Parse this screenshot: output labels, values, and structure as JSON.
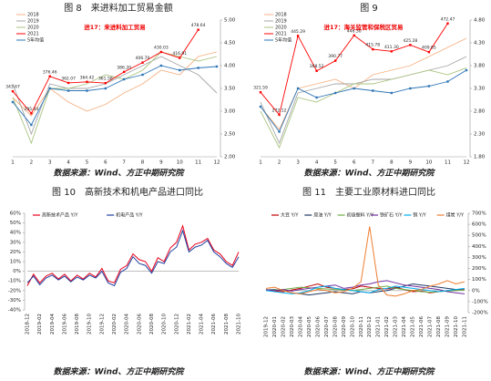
{
  "chart_data": [
    {
      "type": "line",
      "title": "图 8　来进料加工贸易金额",
      "annotation": "进17：来进料加工贸易",
      "categories": [
        "1",
        "2",
        "3",
        "4",
        "5",
        "6",
        "7",
        "8",
        "9",
        "10",
        "11",
        "12"
      ],
      "ylim": [
        200,
        500
      ],
      "yticks": [
        {
          "value": 200,
          "label": "2.00"
        },
        {
          "value": 250,
          "label": "2.50"
        },
        {
          "value": 300,
          "label": "3.00"
        },
        {
          "value": 350,
          "label": "3.50"
        },
        {
          "value": 400,
          "label": "4.00"
        },
        {
          "value": 450,
          "label": "4.50"
        },
        {
          "value": 500,
          "label": "5.00"
        }
      ],
      "series": [
        {
          "name": "2018",
          "color": "#f4b183",
          "values": [
            330,
            290,
            350,
            320,
            300,
            315,
            340,
            360,
            390,
            380,
            420,
            430
          ]
        },
        {
          "name": "2019",
          "color": "#a5a5a5",
          "values": [
            360,
            250,
            360,
            350,
            350,
            360,
            380,
            400,
            420,
            400,
            380,
            340
          ]
        },
        {
          "name": "2020",
          "color": "#a9c47f",
          "values": [
            330,
            230,
            350,
            350,
            360,
            380,
            370,
            390,
            430,
            420,
            410,
            420
          ]
        },
        {
          "name": "2021",
          "color": "#ff0000",
          "markers": true,
          "values": [
            343.67,
            295.44,
            376.46,
            362.07,
            364.42,
            361.58,
            386.2,
            406.7,
            430.03,
            416.91,
            478.64,
            null
          ],
          "value_labels": [
            "343.67",
            "295.44",
            "376.46",
            "362.07",
            "364.42",
            "361.58",
            "386.20",
            "406.70",
            "430.03",
            "416.91",
            "478.64",
            null
          ]
        },
        {
          "name": "5年均值",
          "color": "#2e75b6",
          "markers": true,
          "values": [
            320,
            270,
            350,
            345,
            345,
            350,
            370,
            380,
            400,
            390,
            395,
            398
          ]
        }
      ]
    },
    {
      "type": "line",
      "title": "图 9",
      "annotation": "进17：海关监管和保税区贸易",
      "categories": [
        "1",
        "2",
        "3",
        "4",
        "5",
        "6",
        "7",
        "8",
        "9",
        "10",
        "11",
        "12"
      ],
      "ylim": [
        180,
        480
      ],
      "yticks": [
        {
          "value": 180,
          "label": "1.80"
        },
        {
          "value": 230,
          "label": "2.30"
        },
        {
          "value": 280,
          "label": "2.80"
        },
        {
          "value": 330,
          "label": "3.30"
        },
        {
          "value": 380,
          "label": "3.80"
        },
        {
          "value": 430,
          "label": "4.30"
        },
        {
          "value": 480,
          "label": "4.80"
        }
      ],
      "series": [
        {
          "name": "2018",
          "color": "#f4b183",
          "values": [
            290,
            240,
            330,
            340,
            350,
            330,
            360,
            370,
            380,
            400,
            420,
            440
          ]
        },
        {
          "name": "2019",
          "color": "#a5a5a5",
          "values": [
            300,
            210,
            320,
            330,
            340,
            340,
            350,
            350,
            360,
            370,
            380,
            400
          ]
        },
        {
          "name": "2020",
          "color": "#a9c47f",
          "values": [
            280,
            200,
            310,
            300,
            320,
            340,
            340,
            350,
            360,
            370,
            360,
            375
          ]
        },
        {
          "name": "2021",
          "color": "#ff0000",
          "markers": true,
          "values": [
            321.59,
            272.12,
            445.29,
            368.52,
            390.77,
            446.3,
            415.78,
            411.3,
            425.28,
            409.65,
            472.47,
            null
          ],
          "value_labels": [
            "321.59",
            "272.12",
            "445.29",
            "368.52",
            "390.77",
            "446.30",
            "415.78",
            "411.30",
            "425.28",
            "409.65",
            "472.47",
            null
          ]
        },
        {
          "name": "5年均值",
          "color": "#2e75b6",
          "markers": true,
          "values": [
            290,
            235,
            330,
            310,
            320,
            330,
            325,
            320,
            330,
            335,
            345,
            370
          ]
        }
      ]
    },
    {
      "type": "line",
      "title": "图 10　高新技术和机电产品进口同比",
      "categories": [
        "2018-12",
        null,
        "2019-02",
        null,
        "2019-04",
        null,
        "2019-06",
        null,
        "2019-08",
        null,
        "2019-10",
        null,
        "2019-12",
        null,
        "2020-02",
        null,
        "2020-04",
        null,
        "2020-06",
        null,
        "2020-08",
        null,
        "2020-10",
        null,
        "2020-12",
        null,
        "2021-02",
        null,
        "2021-04",
        null,
        "2021-06",
        null,
        "2021-08",
        null,
        "2021-10"
      ],
      "ylim": [
        -40,
        60
      ],
      "yticks": [
        {
          "value": -40,
          "label": "-40%"
        },
        {
          "value": -30,
          "label": "-30%"
        },
        {
          "value": -20,
          "label": "-20%"
        },
        {
          "value": -10,
          "label": "-10%"
        },
        {
          "value": 0,
          "label": "0%"
        },
        {
          "value": 10,
          "label": "10%"
        },
        {
          "value": 20,
          "label": "20%"
        },
        {
          "value": 30,
          "label": "30%"
        },
        {
          "value": 40,
          "label": "40%"
        },
        {
          "value": 50,
          "label": "50%"
        },
        {
          "value": 60,
          "label": "60%"
        }
      ],
      "series": [
        {
          "name": "高新技术产品 Y/Y",
          "color": "#e8001c",
          "values": [
            -15,
            -3,
            -12,
            -5,
            -2,
            -8,
            -3,
            -10,
            -4,
            -8,
            -2,
            -6,
            3,
            -10,
            -12,
            2,
            6,
            18,
            12,
            10,
            0,
            14,
            10,
            24,
            30,
            47,
            22,
            28,
            30,
            34,
            22,
            18,
            10,
            6,
            20
          ]
        },
        {
          "name": "机电产品 Y/Y",
          "color": "#1f3fa0",
          "values": [
            -12,
            -5,
            -14,
            -7,
            -4,
            -9,
            -5,
            -11,
            -6,
            -9,
            -4,
            -7,
            0,
            -12,
            -15,
            -1,
            3,
            15,
            8,
            6,
            -2,
            10,
            8,
            20,
            25,
            42,
            20,
            25,
            27,
            32,
            20,
            15,
            8,
            4,
            15
          ]
        }
      ]
    },
    {
      "type": "line",
      "title": "图 11　主要工业原材料进口同比",
      "categories": [
        "2019-12",
        "2020-01",
        "2020-02",
        "2020-03",
        "2020-04",
        "2020-05",
        "2020-06",
        "2020-07",
        "2020-08",
        "2020-09",
        "2020-10",
        "2020-11",
        "2020-12",
        "2021-01",
        "2021-02",
        "2021-03",
        "2021-04",
        "2021-05",
        "2021-06",
        "2021-07",
        "2021-08",
        "2021-09",
        "2021-10",
        "2021-11"
      ],
      "ylim": [
        -200,
        700
      ],
      "yticks": [
        {
          "value": -200,
          "label": "-200%"
        },
        {
          "value": -100,
          "label": "-100%"
        },
        {
          "value": 0,
          "label": "0%"
        },
        {
          "value": 100,
          "label": "100%"
        },
        {
          "value": 200,
          "label": "200%"
        },
        {
          "value": 300,
          "label": "300%"
        },
        {
          "value": 400,
          "label": "400%"
        },
        {
          "value": 500,
          "label": "500%"
        },
        {
          "value": 600,
          "label": "600%"
        },
        {
          "value": 700,
          "label": "700%"
        }
      ],
      "series": [
        {
          "name": "大豆 Y/Y",
          "color": "#c00000",
          "values": [
            10,
            -5,
            -10,
            5,
            20,
            40,
            60,
            30,
            20,
            10,
            15,
            40,
            30,
            20,
            15,
            30,
            10,
            -10,
            -5,
            -20,
            -10,
            0,
            5,
            10
          ]
        },
        {
          "name": "原油 Y/Y",
          "color": "#1f3864",
          "values": [
            5,
            10,
            0,
            -20,
            -30,
            -40,
            -30,
            -20,
            -10,
            -20,
            -30,
            -10,
            -20,
            -10,
            0,
            20,
            40,
            60,
            50,
            40,
            30,
            20,
            10,
            5
          ]
        },
        {
          "name": "初级塑料 Y/Y",
          "color": "#70ad47",
          "values": [
            0,
            5,
            10,
            20,
            30,
            25,
            20,
            15,
            10,
            5,
            0,
            10,
            20,
            30,
            40,
            20,
            10,
            0,
            -10,
            -15,
            -10,
            -5,
            0,
            5
          ]
        },
        {
          "name": "铁矿石 Y/Y",
          "color": "#7030a0",
          "values": [
            5,
            0,
            10,
            -5,
            10,
            20,
            30,
            40,
            50,
            20,
            30,
            50,
            60,
            80,
            90,
            70,
            50,
            40,
            30,
            20,
            10,
            -10,
            -20,
            -30
          ]
        },
        {
          "name": "铜 Y/Y",
          "color": "#00b0f0",
          "values": [
            0,
            -10,
            -20,
            -30,
            -20,
            0,
            30,
            40,
            20,
            10,
            0,
            -10,
            -20,
            10,
            20,
            40,
            30,
            20,
            10,
            0,
            -10,
            0,
            10,
            20
          ]
        },
        {
          "name": "煤炭 Y/Y",
          "color": "#ed7d31",
          "values": [
            20,
            30,
            0,
            -20,
            -30,
            -10,
            10,
            0,
            -20,
            -10,
            20,
            80,
            580,
            50,
            -40,
            -50,
            -30,
            0,
            10,
            40,
            60,
            90,
            60,
            80
          ]
        }
      ]
    }
  ],
  "sources": [
    "数据来源：Wind、方正中期研究院",
    "数据来源：Wind、方正中期研究院",
    "数据来源：Wind、方正中期研究院",
    "数据来源：Wind、方正中期研究院"
  ]
}
